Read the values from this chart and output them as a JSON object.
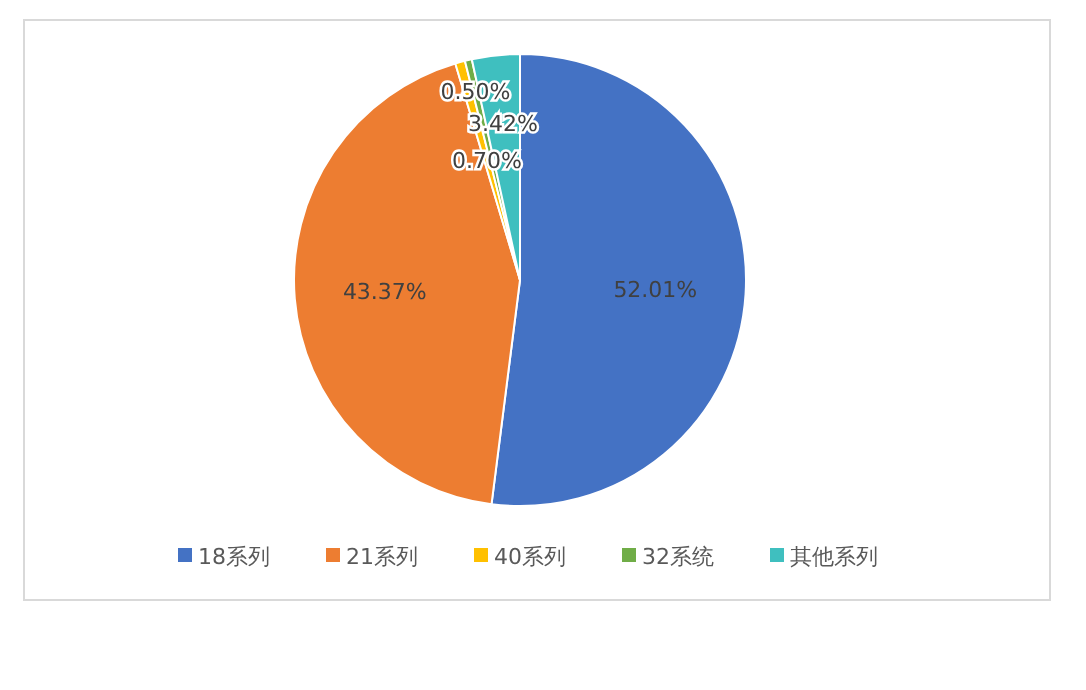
{
  "chart_data": {
    "type": "pie",
    "categories": [
      "18系列",
      "21系列",
      "40系列",
      "32系统",
      "其他系列"
    ],
    "values": [
      52.01,
      43.37,
      0.7,
      0.5,
      3.42
    ],
    "colors": [
      "#4472c4",
      "#ed7d31",
      "#ffc000",
      "#70ad47",
      "#3fbfbf"
    ],
    "value_labels": [
      "52.01%",
      "43.37%",
      "0.70%",
      "0.50%",
      "3.42%"
    ],
    "legend": "bottom"
  }
}
